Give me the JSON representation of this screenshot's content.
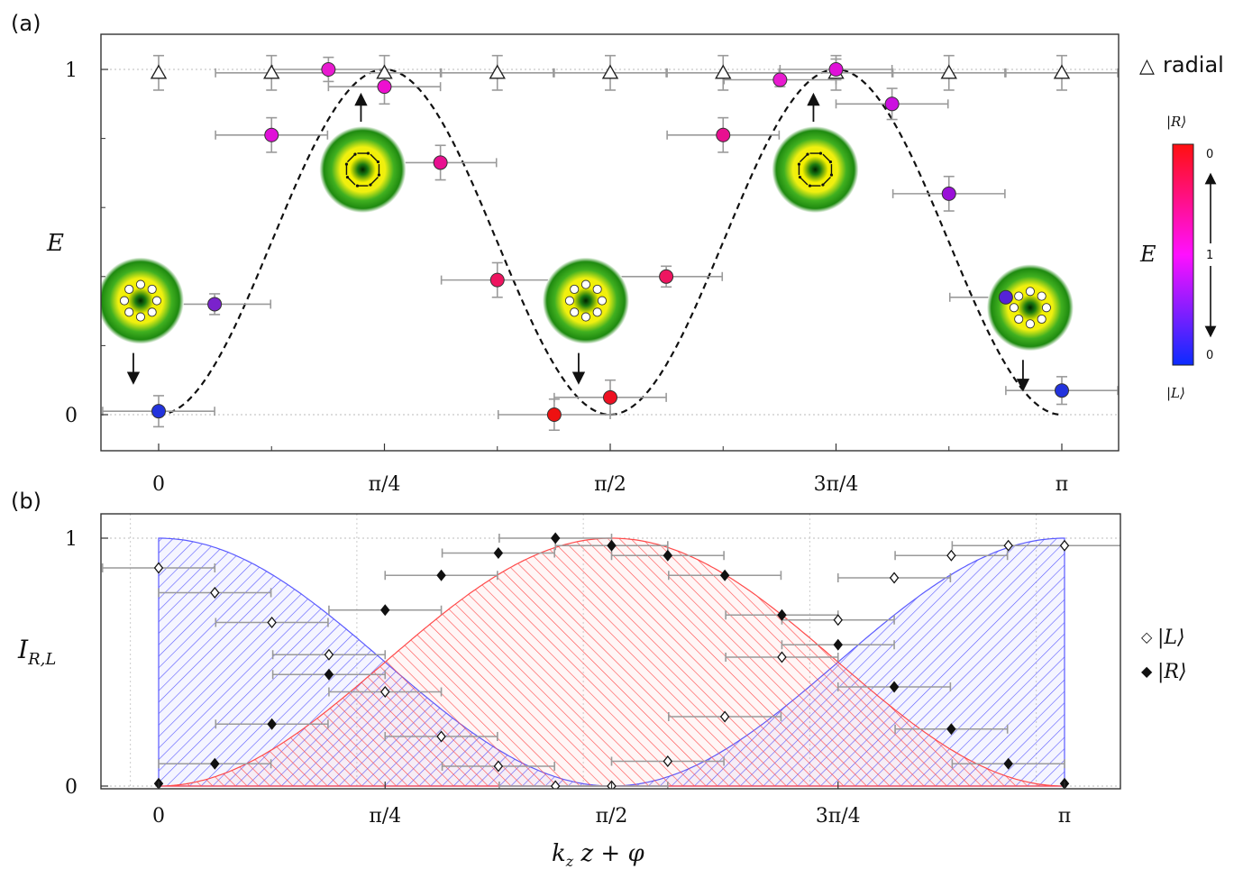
{
  "chart_data": [
    {
      "panel_label": "(a)",
      "type": "scatter",
      "ylabel": "E",
      "xlim": [
        -0.05,
        0.5
      ],
      "ylim": [
        -0.1,
        1.1
      ],
      "x_unit": "π",
      "xtick_values": [
        0,
        0.125,
        0.25,
        0.375,
        0.5
      ],
      "xtick_labels": [
        "0",
        "π/4",
        "π/2",
        "3π/4",
        "π"
      ],
      "ytick_values": [
        0,
        1
      ],
      "ytick_labels": [
        "0",
        "1"
      ],
      "series": [
        {
          "name": "radial",
          "marker": "open-triangle",
          "points": [
            {
              "x": 0.0,
              "y": 0.99,
              "xerr": 0.0,
              "yerr": 0.05
            },
            {
              "x": 0.0625,
              "y": 0.99,
              "xerr": 0.031,
              "yerr": 0.05
            },
            {
              "x": 0.125,
              "y": 0.99,
              "xerr": 0.031,
              "yerr": 0.05
            },
            {
              "x": 0.1875,
              "y": 0.99,
              "xerr": 0.031,
              "yerr": 0.05
            },
            {
              "x": 0.25,
              "y": 0.99,
              "xerr": 0.031,
              "yerr": 0.05
            },
            {
              "x": 0.3125,
              "y": 0.99,
              "xerr": 0.031,
              "yerr": 0.05
            },
            {
              "x": 0.375,
              "y": 0.99,
              "xerr": 0.031,
              "yerr": 0.05
            },
            {
              "x": 0.4375,
              "y": 0.99,
              "xerr": 0.031,
              "yerr": 0.05
            },
            {
              "x": 0.5,
              "y": 0.99,
              "xerr": 0.031,
              "yerr": 0.05
            }
          ]
        },
        {
          "name": "",
          "marker": "colored-circle",
          "points": [
            {
              "x": 0.0,
              "y": 0.01,
              "xerr": 0.031,
              "yerr": 0.045,
              "color": "#2233dd"
            },
            {
              "x": 0.031,
              "y": 0.32,
              "xerr": 0.031,
              "yerr": 0.03,
              "color": "#7a22cc"
            },
            {
              "x": 0.0625,
              "y": 0.81,
              "xerr": 0.031,
              "yerr": 0.05,
              "color": "#e010d8"
            },
            {
              "x": 0.094,
              "y": 1.0,
              "xerr": 0.031,
              "yerr": 0.035,
              "color": "#e81ad0"
            },
            {
              "x": 0.125,
              "y": 0.95,
              "xerr": 0.031,
              "yerr": 0.05,
              "color": "#ee10d0"
            },
            {
              "x": 0.156,
              "y": 0.73,
              "xerr": 0.031,
              "yerr": 0.05,
              "color": "#e81090"
            },
            {
              "x": 0.1875,
              "y": 0.39,
              "xerr": 0.031,
              "yerr": 0.05,
              "color": "#ee1560"
            },
            {
              "x": 0.219,
              "y": 0.0,
              "xerr": 0.031,
              "yerr": 0.045,
              "color": "#ee1111"
            },
            {
              "x": 0.25,
              "y": 0.05,
              "xerr": 0.031,
              "yerr": 0.05,
              "color": "#ee1122"
            },
            {
              "x": 0.281,
              "y": 0.4,
              "xerr": 0.031,
              "yerr": 0.03,
              "color": "#ee1560"
            },
            {
              "x": 0.3125,
              "y": 0.81,
              "xerr": 0.031,
              "yerr": 0.05,
              "color": "#e81090"
            },
            {
              "x": 0.344,
              "y": 0.97,
              "xerr": 0.031,
              "yerr": 0.02,
              "color": "#e81ad0"
            },
            {
              "x": 0.375,
              "y": 1.0,
              "xerr": 0.031,
              "yerr": 0.03,
              "color": "#e010d8"
            },
            {
              "x": 0.406,
              "y": 0.9,
              "xerr": 0.031,
              "yerr": 0.045,
              "color": "#cc10e0"
            },
            {
              "x": 0.4375,
              "y": 0.64,
              "xerr": 0.031,
              "yerr": 0.05,
              "color": "#9a10d8"
            },
            {
              "x": 0.469,
              "y": 0.34,
              "xerr": 0.031,
              "yerr": 0.03,
              "color": "#5522d8"
            },
            {
              "x": 0.5,
              "y": 0.07,
              "xerr": 0.031,
              "yerr": 0.04,
              "color": "#2233dd"
            }
          ]
        },
        {
          "name": "",
          "type": "line",
          "style": "dashed",
          "formula": "sin^2(2x·π)"
        }
      ],
      "legend": [
        {
          "symbol": "△",
          "label": "radial",
          "position": "top-right"
        }
      ],
      "colorbar": {
        "label": "E",
        "top_label": "|R⟩",
        "bottom_label": "|L⟩",
        "tick_labels": [
          "0",
          "1",
          "0"
        ],
        "colors": [
          "#ff1010",
          "#ff10ff",
          "#0b2bff"
        ]
      },
      "insets": [
        {
          "x": -0.01,
          "y": 0.33,
          "pattern": "radial",
          "arrow": "down"
        },
        {
          "x": 0.113,
          "y": 0.71,
          "pattern": "azimuthal",
          "arrow": "up"
        },
        {
          "x": 0.2365,
          "y": 0.33,
          "pattern": "radial",
          "arrow": "down"
        },
        {
          "x": 0.3635,
          "y": 0.71,
          "pattern": "azimuthal",
          "arrow": "up"
        },
        {
          "x": 0.4825,
          "y": 0.31,
          "pattern": "radial",
          "arrow": "down"
        }
      ]
    },
    {
      "panel_label": "(b)",
      "type": "scatter",
      "ylabel": "I_{R,L}",
      "xlabel": "k_z z + φ",
      "xlim": [
        -0.05,
        0.5
      ],
      "ylim": [
        0,
        1.05
      ],
      "x_unit": "π",
      "xtick_values": [
        0,
        0.125,
        0.25,
        0.375,
        0.5
      ],
      "xtick_labels": [
        "0",
        "π/4",
        "π/2",
        "3π/4",
        "π"
      ],
      "ytick_values": [
        0,
        1
      ],
      "ytick_labels": [
        "0",
        "1"
      ],
      "series": [
        {
          "name": "|L⟩",
          "marker": "open-diamond",
          "color": "#111111",
          "points": [
            {
              "x": 0.0,
              "y": 0.88,
              "xerr": 0.031
            },
            {
              "x": 0.031,
              "y": 0.78,
              "xerr": 0.031
            },
            {
              "x": 0.0625,
              "y": 0.66,
              "xerr": 0.031
            },
            {
              "x": 0.094,
              "y": 0.53,
              "xerr": 0.031
            },
            {
              "x": 0.125,
              "y": 0.38,
              "xerr": 0.031
            },
            {
              "x": 0.156,
              "y": 0.2,
              "xerr": 0.031
            },
            {
              "x": 0.1875,
              "y": 0.08,
              "xerr": 0.031
            },
            {
              "x": 0.219,
              "y": 0.0,
              "xerr": 0.031
            },
            {
              "x": 0.25,
              "y": 0.0,
              "xerr": 0.031
            },
            {
              "x": 0.281,
              "y": 0.1,
              "xerr": 0.031
            },
            {
              "x": 0.3125,
              "y": 0.28,
              "xerr": 0.031
            },
            {
              "x": 0.344,
              "y": 0.52,
              "xerr": 0.031
            },
            {
              "x": 0.375,
              "y": 0.67,
              "xerr": 0.031
            },
            {
              "x": 0.406,
              "y": 0.84,
              "xerr": 0.031
            },
            {
              "x": 0.4375,
              "y": 0.93,
              "xerr": 0.031
            },
            {
              "x": 0.469,
              "y": 0.97,
              "xerr": 0.031
            },
            {
              "x": 0.5,
              "y": 0.97,
              "xerr": 0.031
            }
          ]
        },
        {
          "name": "|R⟩",
          "marker": "filled-diamond",
          "color": "#111111",
          "points": [
            {
              "x": 0.0,
              "y": 0.01,
              "xerr": 0.0
            },
            {
              "x": 0.031,
              "y": 0.09,
              "xerr": 0.031
            },
            {
              "x": 0.0625,
              "y": 0.25,
              "xerr": 0.031
            },
            {
              "x": 0.094,
              "y": 0.45,
              "xerr": 0.031
            },
            {
              "x": 0.125,
              "y": 0.71,
              "xerr": 0.031
            },
            {
              "x": 0.156,
              "y": 0.85,
              "xerr": 0.031
            },
            {
              "x": 0.1875,
              "y": 0.94,
              "xerr": 0.031
            },
            {
              "x": 0.219,
              "y": 1.0,
              "xerr": 0.031
            },
            {
              "x": 0.25,
              "y": 0.97,
              "xerr": 0.031
            },
            {
              "x": 0.281,
              "y": 0.93,
              "xerr": 0.031
            },
            {
              "x": 0.3125,
              "y": 0.85,
              "xerr": 0.031
            },
            {
              "x": 0.344,
              "y": 0.69,
              "xerr": 0.031
            },
            {
              "x": 0.375,
              "y": 0.57,
              "xerr": 0.031
            },
            {
              "x": 0.406,
              "y": 0.4,
              "xerr": 0.031
            },
            {
              "x": 0.4375,
              "y": 0.23,
              "xerr": 0.031
            },
            {
              "x": 0.469,
              "y": 0.09,
              "xerr": 0.031
            },
            {
              "x": 0.5,
              "y": 0.01,
              "xerr": 0.0
            }
          ]
        },
        {
          "name": "",
          "type": "area",
          "hatch": "blue",
          "color": "#5a5aff",
          "formula": "cos^2(2x·π)"
        },
        {
          "name": "",
          "type": "area",
          "hatch": "red",
          "color": "#ff4a4a",
          "formula": "sin^2(2x·π)"
        }
      ],
      "legend": [
        {
          "symbol": "◇",
          "label": "|L⟩",
          "position": "right"
        },
        {
          "symbol": "◆",
          "label": "|R⟩",
          "position": "right"
        }
      ]
    }
  ]
}
